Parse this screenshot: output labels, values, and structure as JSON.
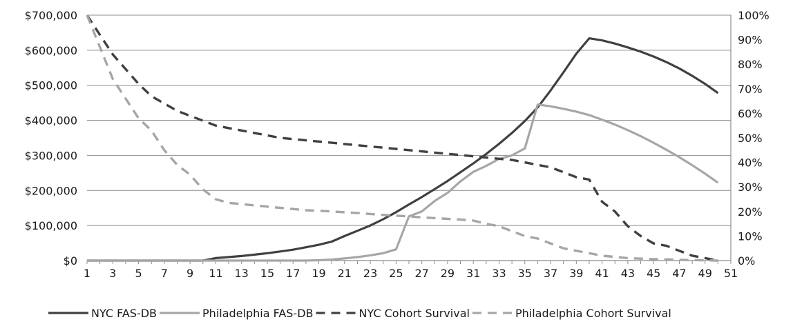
{
  "chart_data": {
    "type": "line",
    "title": "",
    "xlabel": "",
    "ylabel": "",
    "x": [
      1,
      2,
      3,
      4,
      5,
      6,
      7,
      8,
      9,
      10,
      11,
      12,
      13,
      14,
      15,
      16,
      17,
      18,
      19,
      20,
      21,
      22,
      23,
      24,
      25,
      26,
      27,
      28,
      29,
      30,
      31,
      32,
      33,
      34,
      35,
      36,
      37,
      38,
      39,
      40,
      41,
      42,
      43,
      44,
      45,
      46,
      47,
      48,
      49,
      50
    ],
    "x_tick_labels": [
      "1",
      "3",
      "5",
      "7",
      "9",
      "11",
      "13",
      "15",
      "17",
      "19",
      "21",
      "23",
      "25",
      "27",
      "29",
      "31",
      "33",
      "35",
      "37",
      "39",
      "41",
      "43",
      "45",
      "47",
      "49",
      "51"
    ],
    "xlim": [
      1,
      51
    ],
    "y_left": {
      "ylim": [
        0,
        700000
      ],
      "tick_labels": [
        "$0",
        "$100,000",
        "$200,000",
        "$300,000",
        "$400,000",
        "$500,000",
        "$600,000",
        "$700,000"
      ]
    },
    "y_right": {
      "ylim": [
        0,
        100
      ],
      "tick_labels": [
        "0%",
        "10%",
        "20%",
        "30%",
        "40%",
        "50%",
        "60%",
        "70%",
        "80%",
        "90%",
        "100%"
      ]
    },
    "grid": true,
    "legend_position": "bottom",
    "series": [
      {
        "name": "NYC FAS-DB",
        "axis": "left",
        "style": "solid",
        "color": "#404040",
        "values": [
          0,
          0,
          0,
          0,
          0,
          0,
          0,
          0,
          0,
          0,
          7000,
          10000,
          13000,
          17000,
          21000,
          26000,
          31000,
          38000,
          45000,
          54000,
          70000,
          85000,
          100000,
          118000,
          138000,
          160000,
          181000,
          204000,
          227000,
          252000,
          277000,
          304000,
          333000,
          364000,
          398000,
          437000,
          485000,
          537000,
          590000,
          634000,
          628000,
          619000,
          608000,
          596000,
          582000,
          566000,
          548000,
          527000,
          504000,
          478000
        ]
      },
      {
        "name": "Philadelphia FAS-DB",
        "axis": "left",
        "style": "solid",
        "color": "#a6a6a6",
        "values": [
          0,
          0,
          0,
          0,
          0,
          0,
          0,
          0,
          0,
          0,
          0,
          0,
          0,
          0,
          0,
          0,
          0,
          0,
          1000,
          3000,
          6000,
          10000,
          15000,
          21000,
          32000,
          126000,
          140000,
          170000,
          193000,
          226000,
          253000,
          270000,
          290000,
          300000,
          320000,
          445000,
          440000,
          433000,
          425000,
          415000,
          402000,
          388000,
          372000,
          355000,
          336000,
          316000,
          295000,
          272000,
          248000,
          222000
        ]
      },
      {
        "name": "NYC Cohort Survival",
        "axis": "right",
        "style": "dashed",
        "color": "#404040",
        "values": [
          100,
          92,
          84,
          78,
          72,
          67,
          64,
          61,
          59,
          57,
          55,
          54,
          53,
          52,
          51,
          50,
          49.5,
          49,
          48.5,
          48,
          47.5,
          47,
          46.5,
          46,
          45.5,
          45,
          44.5,
          44,
          43.5,
          43,
          42.5,
          42,
          41.5,
          41,
          40,
          39,
          38,
          36,
          34,
          33,
          24,
          20,
          14,
          10,
          7,
          6,
          4,
          2,
          1,
          0
        ]
      },
      {
        "name": "Philadelphia Cohort Survival",
        "axis": "right",
        "style": "dashed",
        "color": "#a6a6a6",
        "values": [
          100,
          87,
          74,
          66,
          58,
          53,
          45,
          39,
          35,
          29,
          25,
          23.5,
          23,
          22.5,
          22,
          21.5,
          21,
          20.5,
          20.3,
          20,
          19.7,
          19.4,
          19,
          18.6,
          18.3,
          18,
          17.6,
          17.3,
          17,
          16.7,
          16.3,
          15,
          14,
          12,
          10,
          9,
          7,
          5,
          4,
          3,
          2,
          1.5,
          1,
          0.8,
          0.6,
          0.5,
          0.3,
          0.2,
          0.1,
          0
        ]
      }
    ]
  }
}
